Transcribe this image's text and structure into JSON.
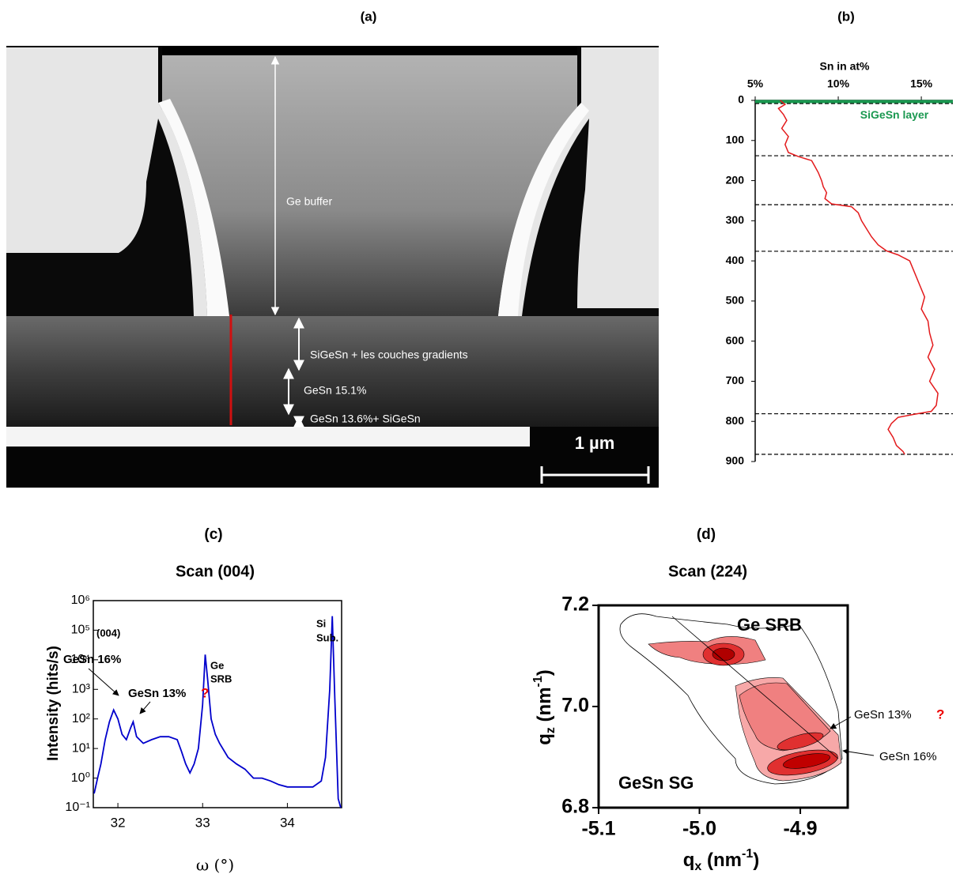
{
  "figure": {
    "panel_labels": [
      "(a)",
      "(b)",
      "(c)",
      "(d)"
    ],
    "micrograph": {
      "annotations": [
        "Ge buffer",
        "SiGeSn + les couches gradients",
        "GeSn 15.1%",
        "GeSn 13.6%+ SiGeSn"
      ],
      "scale_bar": "1 µm"
    }
  },
  "chart_data": [
    {
      "type": "profile",
      "x_label": "Sn in at%",
      "annotation": "SiGeSn layer",
      "layer_depth": 3,
      "xlim": [
        5,
        16.9
      ],
      "ylim": [
        0,
        900
      ],
      "xticks": [
        {
          "value": 5,
          "label": "5%"
        },
        {
          "value": 10,
          "label": "10%"
        },
        {
          "value": 15,
          "label": "15%"
        }
      ],
      "yticks": [
        0,
        100,
        200,
        300,
        400,
        500,
        600,
        700,
        800,
        900
      ],
      "color": "#e31a1c",
      "layer_color": "#1a9850",
      "depth": [
        0,
        10,
        20,
        35,
        50,
        70,
        90,
        110,
        130,
        140,
        150,
        165,
        180,
        200,
        215,
        230,
        245,
        258,
        265,
        280,
        300,
        320,
        340,
        360,
        375,
        385,
        400,
        430,
        460,
        490,
        520,
        550,
        580,
        610,
        640,
        670,
        700,
        730,
        760,
        775,
        782,
        790,
        805,
        820,
        840,
        860,
        875,
        882
      ],
      "values": [
        6.5,
        6.8,
        6.4,
        6.7,
        6.9,
        6.6,
        7.0,
        6.8,
        7.0,
        7.6,
        8.4,
        8.6,
        8.8,
        9.0,
        9.1,
        9.3,
        9.2,
        9.6,
        10.8,
        11.2,
        11.4,
        11.7,
        12.0,
        12.4,
        12.9,
        13.6,
        14.3,
        14.6,
        14.9,
        15.2,
        15.0,
        15.4,
        15.5,
        15.7,
        15.4,
        15.8,
        15.5,
        16.0,
        15.9,
        15.6,
        14.6,
        13.6,
        13.2,
        13.0,
        13.3,
        13.5,
        13.9,
        14.0
      ],
      "boundaries": [
        8,
        138,
        260,
        376,
        781,
        882
      ]
    },
    {
      "type": "line",
      "title": "Scan (004)",
      "x_label": "ω (°)",
      "y_label": "Intensity (hits/s)",
      "log_y": true,
      "color": "#0000cc",
      "xlim": [
        31.71,
        34.64
      ],
      "ylim": [
        0.1,
        1000000
      ],
      "xticks": [
        32,
        33,
        34
      ],
      "yticks": [
        {
          "value": 0.1,
          "label": "10⁻¹"
        },
        {
          "value": 1,
          "label": "10⁰"
        },
        {
          "value": 10,
          "label": "10¹"
        },
        {
          "value": 100,
          "label": "10²"
        },
        {
          "value": 1000,
          "label": "10³"
        },
        {
          "value": 10000,
          "label": "10⁴"
        },
        {
          "value": 100000,
          "label": "10⁵"
        },
        {
          "value": 1000000,
          "label": "10⁶"
        }
      ],
      "x": [
        31.72,
        31.76,
        31.8,
        31.85,
        31.9,
        31.95,
        32.0,
        32.05,
        32.1,
        32.15,
        32.18,
        32.22,
        32.3,
        32.4,
        32.5,
        32.6,
        32.7,
        32.75,
        32.8,
        32.85,
        32.9,
        32.95,
        33.0,
        33.03,
        33.06,
        33.1,
        33.15,
        33.2,
        33.3,
        33.4,
        33.5,
        33.6,
        33.7,
        33.8,
        33.9,
        34.0,
        34.1,
        34.2,
        34.3,
        34.4,
        34.45,
        34.5,
        34.53,
        34.56,
        34.6,
        34.63
      ],
      "values": [
        0.3,
        1,
        3,
        20,
        80,
        200,
        100,
        30,
        20,
        50,
        80,
        25,
        15,
        20,
        25,
        25,
        20,
        8,
        3,
        1.5,
        3,
        10,
        300,
        15000,
        2000,
        100,
        30,
        15,
        5,
        3,
        2,
        1,
        1,
        0.8,
        0.6,
        0.5,
        0.5,
        0.5,
        0.5,
        0.8,
        5,
        1000,
        300000,
        500,
        0.2,
        0.1
      ],
      "annotations": [
        "(004)",
        "GeSn 16%",
        "GeSn 13%",
        "?",
        "Ge",
        "SRB",
        "Si",
        "Sub."
      ]
    },
    {
      "type": "contour",
      "title": "Scan (224)",
      "x_label": [
        "q",
        "x",
        " (nm",
        "-1",
        ")"
      ],
      "y_label": [
        "q",
        "z",
        " (nm",
        "-1",
        ")"
      ],
      "xlim": [
        -5.1,
        -4.853
      ],
      "ylim": [
        6.8,
        7.2
      ],
      "xticks": [
        -5.1,
        {
          "value": -5.0,
          "label": "-5.0"
        },
        -4.9
      ],
      "yticks": [
        6.8,
        {
          "value": 7.0,
          "label": "7.0"
        },
        7.2
      ],
      "annotations": [
        "Ge SRB",
        "GeSn SG",
        "GeSn 13%",
        "?",
        "GeSn 16%"
      ]
    }
  ]
}
